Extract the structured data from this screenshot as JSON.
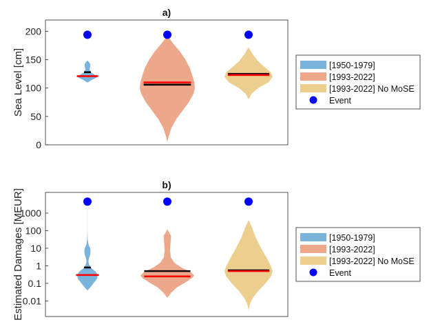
{
  "chart_data": [
    {
      "type": "violin",
      "title": "a)",
      "ylabel": "Sea Level [cm]",
      "yscale": "linear",
      "ylim": [
        0,
        220
      ],
      "yticks": [
        0,
        50,
        100,
        150,
        200
      ],
      "ytick_labels": [
        "0",
        "50",
        "100",
        "150",
        "200"
      ],
      "grid": false,
      "legend_position": "right",
      "series": [
        {
          "name": "[1950-1979]",
          "color": "#7ab4dc",
          "event": 194,
          "mean": 121,
          "median": 128,
          "min": 110,
          "max": 148,
          "profile": [
            [
              110,
              0.05
            ],
            [
              114,
              0.4
            ],
            [
              118,
              0.9
            ],
            [
              121,
              1.0
            ],
            [
              124,
              0.7
            ],
            [
              128,
              0.35
            ],
            [
              133,
              0.22
            ],
            [
              138,
              0.28
            ],
            [
              142,
              0.3
            ],
            [
              146,
              0.15
            ],
            [
              148,
              0.03
            ]
          ]
        },
        {
          "name": "[1993-2022]",
          "color": "#eda88b",
          "event": 194,
          "mean": 110,
          "median": 106,
          "min": 5,
          "max": 190,
          "profile": [
            [
              5,
              0.0
            ],
            [
              15,
              0.05
            ],
            [
              30,
              0.15
            ],
            [
              45,
              0.32
            ],
            [
              60,
              0.55
            ],
            [
              75,
              0.78
            ],
            [
              90,
              0.95
            ],
            [
              100,
              1.0
            ],
            [
              110,
              0.98
            ],
            [
              120,
              0.92
            ],
            [
              135,
              0.82
            ],
            [
              150,
              0.66
            ],
            [
              165,
              0.45
            ],
            [
              178,
              0.22
            ],
            [
              186,
              0.1
            ],
            [
              190,
              0.0
            ]
          ]
        },
        {
          "name": "[1993-2022] No MoSE",
          "color": "#eccf8e",
          "event": 194,
          "mean": 123,
          "median": 125,
          "min": 80,
          "max": 172,
          "profile": [
            [
              80,
              0.0
            ],
            [
              90,
              0.12
            ],
            [
              100,
              0.4
            ],
            [
              110,
              0.82
            ],
            [
              120,
              1.0
            ],
            [
              128,
              0.92
            ],
            [
              138,
              0.64
            ],
            [
              148,
              0.38
            ],
            [
              158,
              0.2
            ],
            [
              166,
              0.08
            ],
            [
              172,
              0.0
            ]
          ]
        }
      ]
    },
    {
      "type": "violin",
      "title": "b)",
      "ylabel": "Estimated Damages [MEUR]",
      "yscale": "log",
      "ylim": [
        0.0013,
        15000
      ],
      "yticks": [
        0.01,
        0.1,
        1,
        10,
        100,
        1000
      ],
      "ytick_labels": [
        "0.01",
        "0.1",
        "1",
        "10",
        "100",
        "1000"
      ],
      "grid": false,
      "legend_position": "right",
      "series": [
        {
          "name": "[1950-1979]",
          "color": "#7ab4dc",
          "event": 4500,
          "mean": 0.3,
          "median": 0.8,
          "min": 0.04,
          "max": 2000,
          "profile": [
            [
              0.04,
              0.0
            ],
            [
              0.06,
              0.28
            ],
            [
              0.1,
              0.58
            ],
            [
              0.18,
              0.92
            ],
            [
              0.28,
              1.0
            ],
            [
              0.45,
              0.82
            ],
            [
              0.7,
              0.42
            ],
            [
              1.0,
              0.22
            ],
            [
              1.6,
              0.1
            ],
            [
              2.5,
              0.12
            ],
            [
              4,
              0.25
            ],
            [
              6,
              0.3
            ],
            [
              10,
              0.27
            ],
            [
              15,
              0.12
            ],
            [
              30,
              0.03
            ],
            [
              100,
              0.005
            ],
            [
              2000,
              0.005
            ]
          ]
        },
        {
          "name": "[1993-2022]",
          "color": "#eda88b",
          "event": 4500,
          "mean": 0.25,
          "median": 0.5,
          "min": 0.015,
          "max": 120,
          "profile": [
            [
              0.015,
              0.0
            ],
            [
              0.03,
              0.15
            ],
            [
              0.06,
              0.36
            ],
            [
              0.1,
              0.62
            ],
            [
              0.2,
              0.92
            ],
            [
              0.28,
              1.0
            ],
            [
              0.45,
              0.86
            ],
            [
              0.8,
              0.52
            ],
            [
              1.5,
              0.26
            ],
            [
              3,
              0.13
            ],
            [
              8,
              0.1
            ],
            [
              20,
              0.12
            ],
            [
              50,
              0.14
            ],
            [
              80,
              0.06
            ],
            [
              120,
              0.0
            ]
          ]
        },
        {
          "name": "[1993-2022] No MoSE",
          "color": "#eccf8e",
          "event": 4500,
          "mean": 0.5,
          "median": 0.55,
          "min": 0.003,
          "max": 400,
          "profile": [
            [
              0.003,
              0.0
            ],
            [
              0.007,
              0.06
            ],
            [
              0.015,
              0.18
            ],
            [
              0.04,
              0.42
            ],
            [
              0.1,
              0.7
            ],
            [
              0.25,
              0.93
            ],
            [
              0.5,
              1.0
            ],
            [
              1,
              0.92
            ],
            [
              3,
              0.74
            ],
            [
              10,
              0.52
            ],
            [
              40,
              0.3
            ],
            [
              150,
              0.14
            ],
            [
              400,
              0.0
            ]
          ]
        }
      ]
    }
  ],
  "legend": {
    "entries": [
      "[1950-1979]",
      "[1993-2022]",
      "[1993-2022] No MoSE",
      "Event"
    ],
    "colors": [
      "#7ab4dc",
      "#eda88b",
      "#eccf8e",
      "#0000ff"
    ]
  },
  "colors": {
    "mean_line": "#ff0000",
    "median_line": "#000000",
    "event": "#0000ff"
  }
}
